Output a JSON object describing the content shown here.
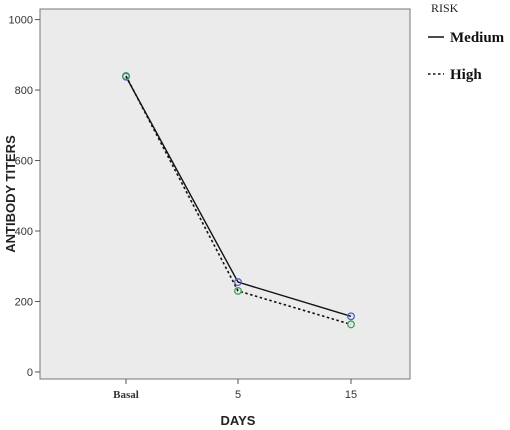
{
  "chart_data": {
    "type": "line",
    "title": "",
    "xlabel": "DAYS",
    "ylabel": "ANTIBODY TITERS",
    "categories": [
      "Basal",
      "5",
      "15"
    ],
    "ylim": [
      -20,
      1030
    ],
    "yticks": [
      0,
      200,
      400,
      600,
      800,
      1000
    ],
    "grid": false,
    "legend": {
      "title": "RISK",
      "placement": "right"
    },
    "series": [
      {
        "name": "Medium",
        "values": [
          838,
          255,
          158
        ],
        "line_style": "solid",
        "line_color": "#111111",
        "marker_color": "#5560c8"
      },
      {
        "name": "High",
        "values": [
          840,
          230,
          135
        ],
        "line_style": "dotted",
        "line_color": "#111111",
        "marker_color": "#3aa35a"
      }
    ],
    "plot_background": "#ebebeb"
  }
}
